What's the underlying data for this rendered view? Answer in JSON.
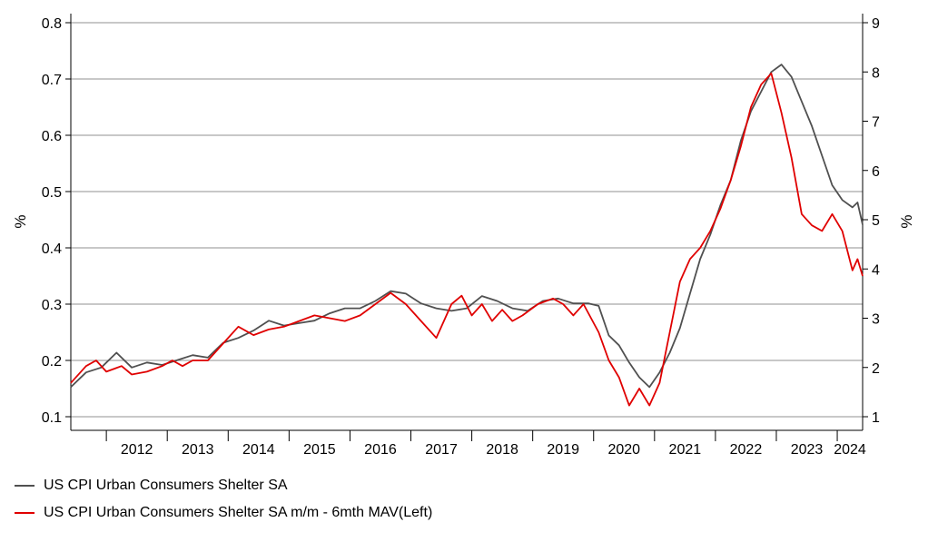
{
  "chart_data": {
    "type": "line",
    "title": "",
    "x_start": "2011-06",
    "x_end": "2024-06",
    "x_tick_labels": [
      "2012",
      "2013",
      "2014",
      "2015",
      "2016",
      "2017",
      "2018",
      "2019",
      "2020",
      "2021",
      "2022",
      "2023",
      "2024"
    ],
    "y_left": {
      "label": "%",
      "range": [
        0.1,
        0.8
      ],
      "ticks": [
        "0.1",
        "0.2",
        "0.3",
        "0.4",
        "0.5",
        "0.6",
        "0.7",
        "0.8"
      ]
    },
    "y_right": {
      "label": "%",
      "range": [
        1,
        9
      ],
      "ticks": [
        "1",
        "2",
        "3",
        "4",
        "5",
        "6",
        "7",
        "8",
        "9"
      ]
    },
    "grid": "horizontal",
    "legend_position": "bottom-left",
    "series": [
      {
        "name": "US CPI Urban Consumers Shelter SA",
        "axis": "right",
        "color": "#505050",
        "points": [
          [
            "2011-06",
            1.6
          ],
          [
            "2011-09",
            1.9
          ],
          [
            "2011-12",
            2.0
          ],
          [
            "2012-03",
            2.3
          ],
          [
            "2012-06",
            2.0
          ],
          [
            "2012-09",
            2.1
          ],
          [
            "2012-12",
            2.05
          ],
          [
            "2013-03",
            2.15
          ],
          [
            "2013-06",
            2.25
          ],
          [
            "2013-09",
            2.2
          ],
          [
            "2013-12",
            2.5
          ],
          [
            "2014-03",
            2.6
          ],
          [
            "2014-06",
            2.75
          ],
          [
            "2014-09",
            2.95
          ],
          [
            "2014-12",
            2.85
          ],
          [
            "2015-03",
            2.9
          ],
          [
            "2015-06",
            2.95
          ],
          [
            "2015-09",
            3.1
          ],
          [
            "2015-12",
            3.2
          ],
          [
            "2016-03",
            3.2
          ],
          [
            "2016-06",
            3.35
          ],
          [
            "2016-09",
            3.55
          ],
          [
            "2016-12",
            3.5
          ],
          [
            "2017-03",
            3.3
          ],
          [
            "2017-06",
            3.2
          ],
          [
            "2017-09",
            3.15
          ],
          [
            "2017-12",
            3.2
          ],
          [
            "2018-03",
            3.45
          ],
          [
            "2018-06",
            3.35
          ],
          [
            "2018-09",
            3.2
          ],
          [
            "2018-12",
            3.15
          ],
          [
            "2019-03",
            3.35
          ],
          [
            "2019-06",
            3.4
          ],
          [
            "2019-09",
            3.3
          ],
          [
            "2019-12",
            3.3
          ],
          [
            "2020-02",
            3.25
          ],
          [
            "2020-04",
            2.65
          ],
          [
            "2020-06",
            2.45
          ],
          [
            "2020-08",
            2.1
          ],
          [
            "2020-10",
            1.8
          ],
          [
            "2020-12",
            1.6
          ],
          [
            "2021-02",
            1.9
          ],
          [
            "2021-04",
            2.3
          ],
          [
            "2021-06",
            2.8
          ],
          [
            "2021-08",
            3.5
          ],
          [
            "2021-10",
            4.2
          ],
          [
            "2021-12",
            4.7
          ],
          [
            "2022-02",
            5.3
          ],
          [
            "2022-04",
            5.8
          ],
          [
            "2022-06",
            6.6
          ],
          [
            "2022-08",
            7.2
          ],
          [
            "2022-10",
            7.6
          ],
          [
            "2022-12",
            8.0
          ],
          [
            "2023-02",
            8.15
          ],
          [
            "2023-04",
            7.9
          ],
          [
            "2023-06",
            7.4
          ],
          [
            "2023-08",
            6.9
          ],
          [
            "2023-10",
            6.3
          ],
          [
            "2023-12",
            5.7
          ],
          [
            "2024-02",
            5.4
          ],
          [
            "2024-04",
            5.25
          ],
          [
            "2024-05",
            5.35
          ],
          [
            "2024-06",
            4.9
          ]
        ]
      },
      {
        "name": "US CPI Urban Consumers Shelter SA m/m - 6mth MAV(Left)",
        "axis": "left",
        "color": "#e00000",
        "points": [
          [
            "2011-06",
            0.16
          ],
          [
            "2011-09",
            0.19
          ],
          [
            "2011-11",
            0.2
          ],
          [
            "2012-01",
            0.18
          ],
          [
            "2012-04",
            0.19
          ],
          [
            "2012-06",
            0.175
          ],
          [
            "2012-09",
            0.18
          ],
          [
            "2012-12",
            0.19
          ],
          [
            "2013-02",
            0.2
          ],
          [
            "2013-04",
            0.19
          ],
          [
            "2013-06",
            0.2
          ],
          [
            "2013-09",
            0.2
          ],
          [
            "2013-12",
            0.23
          ],
          [
            "2014-03",
            0.26
          ],
          [
            "2014-06",
            0.245
          ],
          [
            "2014-09",
            0.255
          ],
          [
            "2014-12",
            0.26
          ],
          [
            "2015-03",
            0.27
          ],
          [
            "2015-06",
            0.28
          ],
          [
            "2015-09",
            0.275
          ],
          [
            "2015-12",
            0.27
          ],
          [
            "2016-03",
            0.28
          ],
          [
            "2016-06",
            0.3
          ],
          [
            "2016-09",
            0.32
          ],
          [
            "2016-12",
            0.3
          ],
          [
            "2017-03",
            0.27
          ],
          [
            "2017-06",
            0.24
          ],
          [
            "2017-09",
            0.3
          ],
          [
            "2017-11",
            0.315
          ],
          [
            "2018-01",
            0.28
          ],
          [
            "2018-03",
            0.3
          ],
          [
            "2018-05",
            0.27
          ],
          [
            "2018-07",
            0.29
          ],
          [
            "2018-09",
            0.27
          ],
          [
            "2018-11",
            0.28
          ],
          [
            "2019-02",
            0.3
          ],
          [
            "2019-05",
            0.31
          ],
          [
            "2019-07",
            0.3
          ],
          [
            "2019-09",
            0.28
          ],
          [
            "2019-11",
            0.3
          ],
          [
            "2020-02",
            0.25
          ],
          [
            "2020-04",
            0.2
          ],
          [
            "2020-06",
            0.17
          ],
          [
            "2020-08",
            0.12
          ],
          [
            "2020-10",
            0.15
          ],
          [
            "2020-12",
            0.12
          ],
          [
            "2021-02",
            0.16
          ],
          [
            "2021-04",
            0.25
          ],
          [
            "2021-06",
            0.34
          ],
          [
            "2021-08",
            0.38
          ],
          [
            "2021-10",
            0.4
          ],
          [
            "2021-12",
            0.43
          ],
          [
            "2022-02",
            0.47
          ],
          [
            "2022-04",
            0.52
          ],
          [
            "2022-06",
            0.58
          ],
          [
            "2022-08",
            0.65
          ],
          [
            "2022-10",
            0.69
          ],
          [
            "2022-12",
            0.71
          ],
          [
            "2023-02",
            0.64
          ],
          [
            "2023-04",
            0.56
          ],
          [
            "2023-06",
            0.46
          ],
          [
            "2023-08",
            0.44
          ],
          [
            "2023-10",
            0.43
          ],
          [
            "2023-12",
            0.46
          ],
          [
            "2024-02",
            0.43
          ],
          [
            "2024-04",
            0.36
          ],
          [
            "2024-05",
            0.38
          ],
          [
            "2024-06",
            0.35
          ]
        ]
      }
    ]
  }
}
